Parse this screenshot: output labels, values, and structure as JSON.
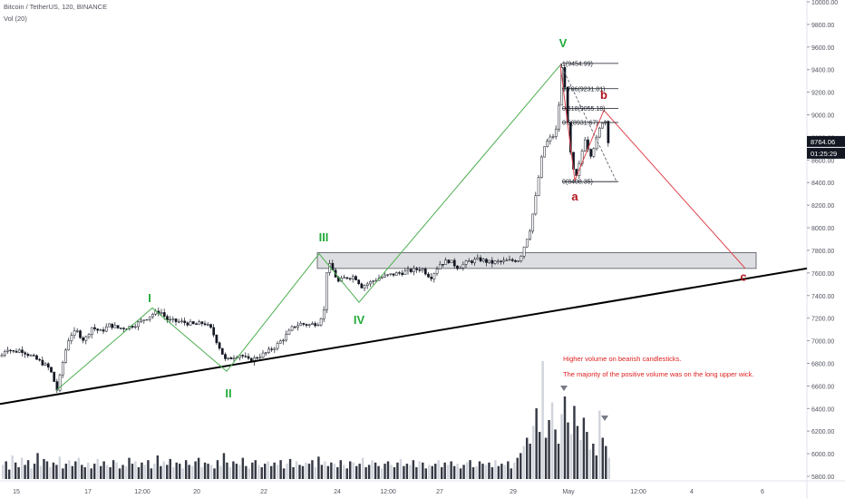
{
  "header": {
    "symbol": "Bitcoin / TetherUS",
    "interval": "120",
    "exchange": "BINANCE",
    "volume_indicator": "Vol (20)"
  },
  "chart_data": {
    "type": "candlestick",
    "y_axis": {
      "range": [
        5800,
        10000
      ],
      "ticks": [
        5800,
        6000,
        6200,
        6400,
        6600,
        6800,
        7000,
        7200,
        7400,
        7600,
        7800,
        8000,
        8200,
        8400,
        8600,
        8800,
        9000,
        9200,
        9400,
        9600,
        9800,
        10000
      ],
      "tick_labels": [
        "5800.00",
        "6000.00",
        "6200.00",
        "6400.00",
        "6600.00",
        "6800.00",
        "7000.00",
        "7200.00",
        "7400.00",
        "7600.00",
        "7800.00",
        "8000.00",
        "8200.00",
        "8400.00",
        "8600.00",
        "8800.00",
        "9000.00",
        "9200.00",
        "9400.00",
        "9600.00",
        "9800.00",
        "10000.00"
      ]
    },
    "x_axis": {
      "tick_labels": [
        "15",
        "17",
        "12:00",
        "20",
        "22",
        "24",
        "12:00",
        "27",
        "29",
        "May",
        "12:00",
        "4",
        "6"
      ]
    },
    "last_price": {
      "value": 8764.06,
      "label": "8764.06",
      "countdown": "01:25:29",
      "color": "#131722"
    },
    "price_path": [
      [
        0,
        6860
      ],
      [
        6,
        6940
      ],
      [
        14,
        6900
      ],
      [
        22,
        6920
      ],
      [
        30,
        6880
      ],
      [
        38,
        6840
      ],
      [
        46,
        6800
      ],
      [
        54,
        6750
      ],
      [
        62,
        6560
      ],
      [
        70,
        6880
      ],
      [
        76,
        7050
      ],
      [
        84,
        7080
      ],
      [
        92,
        7000
      ],
      [
        100,
        7120
      ],
      [
        110,
        7080
      ],
      [
        120,
        7140
      ],
      [
        130,
        7110
      ],
      [
        140,
        7120
      ],
      [
        150,
        7150
      ],
      [
        160,
        7200
      ],
      [
        168,
        7240
      ],
      [
        176,
        7260
      ],
      [
        184,
        7180
      ],
      [
        194,
        7170
      ],
      [
        204,
        7160
      ],
      [
        214,
        7140
      ],
      [
        224,
        7160
      ],
      [
        232,
        7100
      ],
      [
        240,
        6960
      ],
      [
        248,
        6820
      ],
      [
        256,
        6860
      ],
      [
        264,
        6880
      ],
      [
        274,
        6820
      ],
      [
        284,
        6860
      ],
      [
        294,
        6900
      ],
      [
        304,
        6960
      ],
      [
        314,
        7040
      ],
      [
        322,
        7120
      ],
      [
        330,
        7150
      ],
      [
        340,
        7140
      ],
      [
        350,
        7160
      ],
      [
        357,
        7280
      ],
      [
        360,
        7700
      ],
      [
        366,
        7620
      ],
      [
        372,
        7520
      ],
      [
        380,
        7560
      ],
      [
        390,
        7570
      ],
      [
        398,
        7480
      ],
      [
        408,
        7520
      ],
      [
        418,
        7560
      ],
      [
        428,
        7580
      ],
      [
        440,
        7600
      ],
      [
        452,
        7620
      ],
      [
        464,
        7640
      ],
      [
        474,
        7560
      ],
      [
        484,
        7680
      ],
      [
        494,
        7710
      ],
      [
        504,
        7650
      ],
      [
        516,
        7700
      ],
      [
        528,
        7720
      ],
      [
        540,
        7690
      ],
      [
        552,
        7700
      ],
      [
        564,
        7710
      ],
      [
        572,
        7720
      ],
      [
        578,
        7860
      ],
      [
        584,
        8000
      ],
      [
        590,
        8280
      ],
      [
        594,
        8500
      ],
      [
        598,
        8700
      ],
      [
        604,
        8780
      ],
      [
        610,
        8820
      ],
      [
        614,
        8900
      ],
      [
        618,
        9440
      ],
      [
        622,
        9250
      ],
      [
        626,
        8800
      ],
      [
        630,
        8540
      ],
      [
        634,
        8430
      ],
      [
        638,
        8560
      ],
      [
        644,
        8800
      ],
      [
        650,
        8640
      ],
      [
        656,
        8760
      ],
      [
        662,
        8920
      ],
      [
        666,
        8980
      ],
      [
        670,
        8760
      ]
    ],
    "volume": {
      "range": [
        0,
        100
      ],
      "bars": [
        12,
        15,
        8,
        20,
        14,
        10,
        18,
        12,
        16,
        9,
        13,
        22,
        11,
        17,
        15,
        10,
        14,
        12,
        19,
        9,
        13,
        16,
        11,
        15,
        18,
        12,
        10,
        14,
        9,
        13,
        17,
        11,
        15,
        12,
        10,
        16,
        14,
        9,
        12,
        11,
        18,
        13,
        15,
        10,
        14,
        12,
        16,
        9,
        13,
        20,
        11,
        15,
        12,
        17,
        10,
        14,
        13,
        9,
        16,
        12,
        11,
        15,
        18,
        10,
        14,
        13,
        12,
        9,
        16,
        11,
        22,
        14,
        10,
        15,
        13,
        12,
        18,
        11,
        9,
        14,
        16,
        12,
        10,
        13,
        15,
        11,
        14,
        12,
        16,
        9,
        13,
        17,
        10,
        15,
        12,
        11,
        14,
        13,
        16,
        10,
        19,
        12,
        15,
        11,
        14,
        13,
        10,
        16,
        12,
        9,
        15,
        14,
        11,
        13,
        18,
        10,
        12,
        16,
        14,
        11,
        9,
        13,
        15,
        12,
        10,
        14,
        17,
        11,
        13,
        12,
        16,
        10,
        15,
        14,
        9,
        12,
        11,
        13,
        16,
        10,
        14,
        12,
        15,
        11,
        13,
        9,
        12,
        14,
        16,
        10,
        11,
        15,
        13,
        12,
        14,
        10,
        16,
        11,
        13,
        12,
        15,
        9,
        14,
        18,
        22,
        28,
        35,
        30,
        45,
        60,
        40,
        100,
        35,
        50,
        65,
        42,
        30,
        55,
        70,
        48,
        38,
        62,
        45,
        33,
        52,
        40,
        25,
        30,
        20,
        58,
        35,
        28,
        18
      ]
    },
    "wave_labels": [
      {
        "text": "I",
        "x": 165,
        "price": 7340,
        "color": "#22ab3a"
      },
      {
        "text": "II",
        "x": 252,
        "price": 6500,
        "color": "#22ab3a"
      },
      {
        "text": "III",
        "x": 357,
        "price": 7880,
        "color": "#22ab3a"
      },
      {
        "text": "IV",
        "x": 396,
        "price": 7150,
        "color": "#22ab3a"
      },
      {
        "text": "V",
        "x": 621,
        "price": 9600,
        "color": "#22ab3a"
      },
      {
        "text": "a",
        "x": 634,
        "price": 8240,
        "color": "#b2141e"
      },
      {
        "text": "b",
        "x": 666,
        "price": 9140,
        "color": "#b2141e"
      },
      {
        "text": "c",
        "x": 820,
        "price": 7530,
        "color": "#b2141e"
      }
    ],
    "impulse_path": [
      [
        62,
        6560
      ],
      [
        168,
        7290
      ],
      [
        250,
        6730
      ],
      [
        352,
        7770
      ],
      [
        396,
        7340
      ],
      [
        618,
        9440
      ]
    ],
    "correction_path": [
      [
        618,
        9440
      ],
      [
        634,
        8420
      ],
      [
        666,
        9040
      ],
      [
        822,
        7640
      ]
    ],
    "trendline": [
      [
        0,
        6440
      ],
      [
        890,
        7640
      ]
    ],
    "resistance_zone": {
      "x1": 350,
      "x2": 834,
      "price_top": 7780,
      "price_bottom": 7640
    },
    "fibonacci": [
      {
        "label": "1(9454.99)",
        "value": 9454.99
      },
      {
        "label": "0.786(9231.01)",
        "value": 9231.01
      },
      {
        "label": "0.618(9055.18)",
        "value": 9055.18
      },
      {
        "label": "0.5(8931.67)",
        "value": 8931.67
      },
      {
        "label": "0(8408.35)",
        "value": 8408.35
      }
    ],
    "annotations": [
      "Higher volume on bearish candlesticks.",
      "The majority of the positive volume was on the long upper wick."
    ],
    "colors": {
      "impulse": "#4caf50",
      "correction": "#e0454e",
      "trendline": "#000000",
      "annotation": "#e02020",
      "candle": "#131722",
      "volume": "#131722"
    }
  }
}
